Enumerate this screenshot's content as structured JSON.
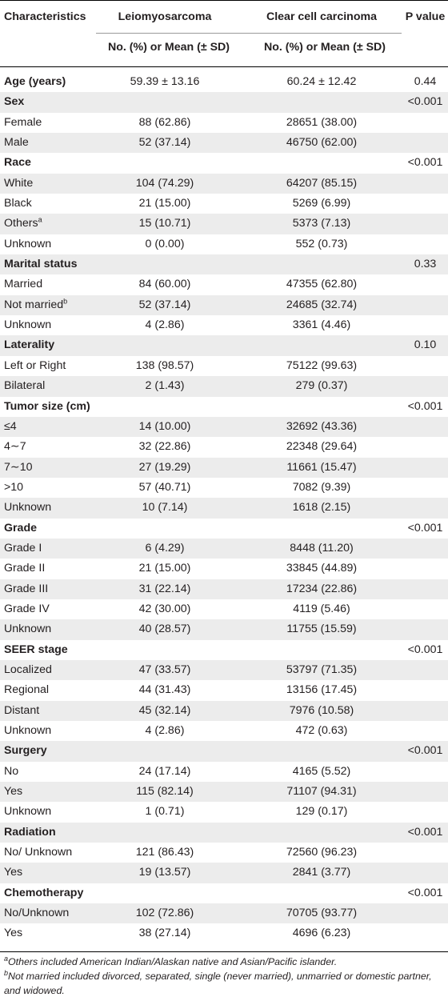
{
  "header": {
    "characteristics": "Characteristics",
    "group1": "Leiomyosarcoma",
    "group2": "Clear cell carcinoma",
    "pvalue": "P value",
    "sub1": "No. (%) or Mean (± SD)",
    "sub2": "No. (%) or Mean (± SD)"
  },
  "rows": [
    {
      "label": "Age (years)",
      "sup": "",
      "v1": "59.39 ± 13.16",
      "v2": "60.24 ± 12.42",
      "p": "0.44",
      "category": true
    },
    {
      "label": "Sex",
      "sup": "",
      "v1": "",
      "v2": "",
      "p": "<0.001",
      "category": true
    },
    {
      "label": "Female",
      "sup": "",
      "v1": "88 (62.86)",
      "v2": "28651 (38.00)",
      "p": "",
      "category": false
    },
    {
      "label": "Male",
      "sup": "",
      "v1": "52 (37.14)",
      "v2": "46750 (62.00)",
      "p": "",
      "category": false
    },
    {
      "label": "Race",
      "sup": "",
      "v1": "",
      "v2": "",
      "p": "<0.001",
      "category": true
    },
    {
      "label": "White",
      "sup": "",
      "v1": "104 (74.29)",
      "v2": "64207 (85.15)",
      "p": "",
      "category": false
    },
    {
      "label": "Black",
      "sup": "",
      "v1": "21 (15.00)",
      "v2": "5269 (6.99)",
      "p": "",
      "category": false
    },
    {
      "label": "Others",
      "sup": "a",
      "v1": "15 (10.71)",
      "v2": "5373 (7.13)",
      "p": "",
      "category": false
    },
    {
      "label": "Unknown",
      "sup": "",
      "v1": "0 (0.00)",
      "v2": "552 (0.73)",
      "p": "",
      "category": false
    },
    {
      "label": "Marital status",
      "sup": "",
      "v1": "",
      "v2": "",
      "p": "0.33",
      "category": true
    },
    {
      "label": "Married",
      "sup": "",
      "v1": "84 (60.00)",
      "v2": "47355 (62.80)",
      "p": "",
      "category": false
    },
    {
      "label": "Not married",
      "sup": "b",
      "v1": "52 (37.14)",
      "v2": "24685 (32.74)",
      "p": "",
      "category": false
    },
    {
      "label": "Unknown",
      "sup": "",
      "v1": "4 (2.86)",
      "v2": "3361 (4.46)",
      "p": "",
      "category": false
    },
    {
      "label": "Laterality",
      "sup": "",
      "v1": "",
      "v2": "",
      "p": "0.10",
      "category": true
    },
    {
      "label": "Left or Right",
      "sup": "",
      "v1": "138 (98.57)",
      "v2": "75122 (99.63)",
      "p": "",
      "category": false
    },
    {
      "label": "Bilateral",
      "sup": "",
      "v1": "2 (1.43)",
      "v2": "279 (0.37)",
      "p": "",
      "category": false
    },
    {
      "label": "Tumor size (cm)",
      "sup": "",
      "v1": "",
      "v2": "",
      "p": "<0.001",
      "category": true
    },
    {
      "label": "≤4",
      "sup": "",
      "v1": "14 (10.00)",
      "v2": "32692 (43.36)",
      "p": "",
      "category": false
    },
    {
      "label": "4∼7",
      "sup": "",
      "v1": "32 (22.86)",
      "v2": "22348 (29.64)",
      "p": "",
      "category": false
    },
    {
      "label": "7∼10",
      "sup": "",
      "v1": "27 (19.29)",
      "v2": "11661 (15.47)",
      "p": "",
      "category": false
    },
    {
      "label": ">10",
      "sup": "",
      "v1": "57 (40.71)",
      "v2": "7082 (9.39)",
      "p": "",
      "category": false
    },
    {
      "label": "Unknown",
      "sup": "",
      "v1": "10 (7.14)",
      "v2": "1618 (2.15)",
      "p": "",
      "category": false
    },
    {
      "label": "Grade",
      "sup": "",
      "v1": "",
      "v2": "",
      "p": "<0.001",
      "category": true
    },
    {
      "label": "Grade I",
      "sup": "",
      "v1": "6 (4.29)",
      "v2": "8448 (11.20)",
      "p": "",
      "category": false
    },
    {
      "label": "Grade II",
      "sup": "",
      "v1": "21 (15.00)",
      "v2": "33845 (44.89)",
      "p": "",
      "category": false
    },
    {
      "label": "Grade III",
      "sup": "",
      "v1": "31 (22.14)",
      "v2": "17234 (22.86)",
      "p": "",
      "category": false
    },
    {
      "label": "Grade IV",
      "sup": "",
      "v1": "42 (30.00)",
      "v2": "4119 (5.46)",
      "p": "",
      "category": false
    },
    {
      "label": "Unknown",
      "sup": "",
      "v1": "40 (28.57)",
      "v2": "11755 (15.59)",
      "p": "",
      "category": false
    },
    {
      "label": "SEER stage",
      "sup": "",
      "v1": "",
      "v2": "",
      "p": "<0.001",
      "category": true
    },
    {
      "label": "Localized",
      "sup": "",
      "v1": "47 (33.57)",
      "v2": "53797 (71.35)",
      "p": "",
      "category": false
    },
    {
      "label": "Regional",
      "sup": "",
      "v1": "44 (31.43)",
      "v2": "13156 (17.45)",
      "p": "",
      "category": false
    },
    {
      "label": "Distant",
      "sup": "",
      "v1": "45 (32.14)",
      "v2": "7976 (10.58)",
      "p": "",
      "category": false
    },
    {
      "label": "Unknown",
      "sup": "",
      "v1": "4 (2.86)",
      "v2": "472 (0.63)",
      "p": "",
      "category": false
    },
    {
      "label": "Surgery",
      "sup": "",
      "v1": "",
      "v2": "",
      "p": "<0.001",
      "category": true
    },
    {
      "label": "No",
      "sup": "",
      "v1": "24 (17.14)",
      "v2": "4165 (5.52)",
      "p": "",
      "category": false
    },
    {
      "label": "Yes",
      "sup": "",
      "v1": "115 (82.14)",
      "v2": "71107 (94.31)",
      "p": "",
      "category": false
    },
    {
      "label": "Unknown",
      "sup": "",
      "v1": "1 (0.71)",
      "v2": "129 (0.17)",
      "p": "",
      "category": false
    },
    {
      "label": "Radiation",
      "sup": "",
      "v1": "",
      "v2": "",
      "p": "<0.001",
      "category": true
    },
    {
      "label": "No/ Unknown",
      "sup": "",
      "v1": "121 (86.43)",
      "v2": "72560 (96.23)",
      "p": "",
      "category": false
    },
    {
      "label": "Yes",
      "sup": "",
      "v1": "19 (13.57)",
      "v2": "2841 (3.77)",
      "p": "",
      "category": false
    },
    {
      "label": "Chemotherapy",
      "sup": "",
      "v1": "",
      "v2": "",
      "p": "<0.001",
      "category": true
    },
    {
      "label": "No/Unknown",
      "sup": "",
      "v1": "102 (72.86)",
      "v2": "70705 (93.77)",
      "p": "",
      "category": false
    },
    {
      "label": "Yes",
      "sup": "",
      "v1": "38 (27.14)",
      "v2": "4696 (6.23)",
      "p": "",
      "category": false
    }
  ],
  "footnotes": [
    {
      "mark": "a",
      "text": "Others included American Indian/Alaskan native and Asian/Pacific islander."
    },
    {
      "mark": "b",
      "text": "Not married included divorced, separated, single (never married), unmarried or domestic partner, and widowed."
    }
  ],
  "colors": {
    "stripe": "#ececec",
    "text": "#231f20",
    "rule": "#000000"
  }
}
